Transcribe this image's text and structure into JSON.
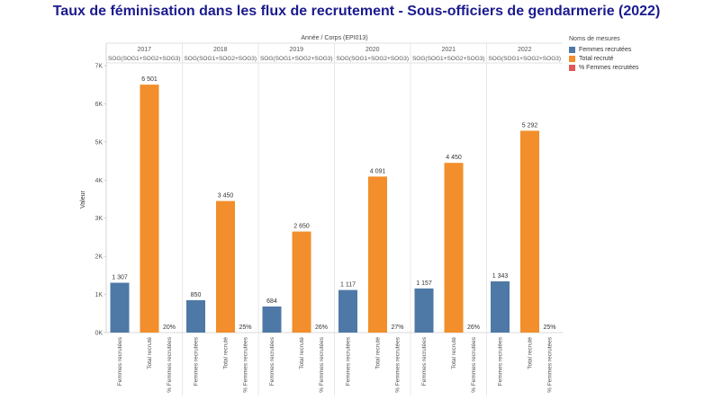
{
  "title": "Taux de féminisation dans les flux de recrutement - Sous-officiers de gendarmerie (2022)",
  "chart_data": {
    "type": "bar",
    "header_title": "Année / Corps (EPI013)",
    "ylabel": "Valeur",
    "ylim": [
      0,
      7000
    ],
    "yticks": [
      "0K",
      "1K",
      "2K",
      "3K",
      "4K",
      "5K",
      "6K",
      "7K"
    ],
    "measures": [
      "Femmes recrutées",
      "Total recruté",
      "% Femmes recrutées"
    ],
    "legend_title": "Noms de mesures",
    "legend_position": "right",
    "grid": false,
    "groups": [
      {
        "year": "2017",
        "corps": "SOG(SOG1+SOG2+SOG3)",
        "values": [
          1307,
          6501,
          20
        ],
        "labels": [
          "1 307",
          "6 501",
          "20%"
        ]
      },
      {
        "year": "2018",
        "corps": "SOG(SOG1+SOG2+SOG3)",
        "values": [
          850,
          3450,
          25
        ],
        "labels": [
          "850",
          "3 450",
          "25%"
        ]
      },
      {
        "year": "2019",
        "corps": "SOG(SOG1+SOG2+SOG3)",
        "values": [
          684,
          2650,
          26
        ],
        "labels": [
          "684",
          "2 650",
          "26%"
        ]
      },
      {
        "year": "2020",
        "corps": "SOG(SOG1+SOG2+SOG3)",
        "values": [
          1117,
          4091,
          27
        ],
        "labels": [
          "1 117",
          "4 091",
          "27%"
        ]
      },
      {
        "year": "2021",
        "corps": "SOG(SOG1+SOG2+SOG3)",
        "values": [
          1157,
          4450,
          26
        ],
        "labels": [
          "1 157",
          "4 450",
          "26%"
        ]
      },
      {
        "year": "2022",
        "corps": "SOG(SOG1+SOG2+SOG3)",
        "values": [
          1343,
          5292,
          25
        ],
        "labels": [
          "1 343",
          "5 292",
          "25%"
        ]
      }
    ],
    "colors": [
      "#4e79a7",
      "#f28e2b",
      "#e15759"
    ]
  }
}
